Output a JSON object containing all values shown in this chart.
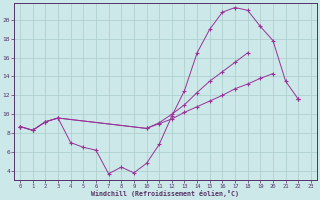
{
  "background_color": "#cce8e8",
  "line_color": "#993399",
  "grid_color": "#aacccc",
  "spine_color": "#553366",
  "xlabel": "Windchill (Refroidissement éolien,°C)",
  "xlim": [
    -0.5,
    23.5
  ],
  "ylim": [
    3.0,
    21.8
  ],
  "yticks": [
    4,
    6,
    8,
    10,
    12,
    14,
    16,
    18,
    20
  ],
  "xticks": [
    0,
    1,
    2,
    3,
    4,
    5,
    6,
    7,
    8,
    9,
    10,
    11,
    12,
    13,
    14,
    15,
    16,
    17,
    18,
    19,
    20,
    21,
    22,
    23
  ],
  "curve1_x": [
    0,
    1,
    2,
    3,
    4,
    5,
    6,
    7,
    8,
    9,
    10,
    11,
    12,
    13,
    14,
    15,
    16,
    17,
    18,
    19,
    20,
    21,
    22
  ],
  "curve1_y": [
    8.7,
    8.3,
    9.2,
    9.6,
    7.0,
    6.5,
    6.2,
    3.7,
    4.4,
    3.8,
    4.8,
    6.8,
    9.8,
    12.5,
    16.5,
    19.0,
    20.8,
    21.3,
    21.0,
    19.3,
    17.8,
    13.5,
    11.6
  ],
  "curve2_x": [
    0,
    1,
    2,
    3,
    10,
    11,
    12,
    13,
    14,
    15,
    16,
    17,
    18,
    19,
    20,
    21,
    22
  ],
  "curve2_y": [
    8.7,
    8.3,
    9.2,
    9.6,
    8.5,
    9.1,
    10.0,
    11.0,
    12.3,
    13.5,
    14.5,
    15.5,
    16.5,
    null,
    null,
    null,
    11.6
  ],
  "curve3_x": [
    0,
    1,
    2,
    3,
    10,
    11,
    12,
    13,
    14,
    15,
    16,
    17,
    18,
    19,
    20,
    21,
    22
  ],
  "curve3_y": [
    8.7,
    8.3,
    9.2,
    9.6,
    8.5,
    9.0,
    9.5,
    10.2,
    10.8,
    11.4,
    12.0,
    12.7,
    13.2,
    13.8,
    14.3,
    null,
    11.6
  ]
}
